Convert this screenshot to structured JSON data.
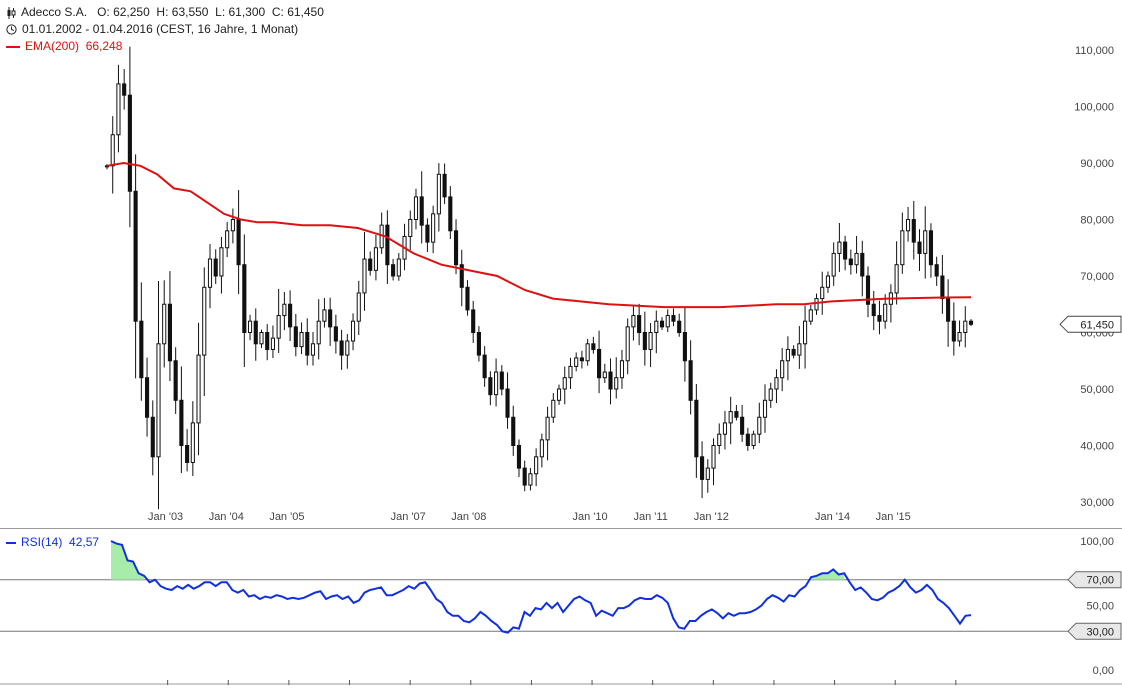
{
  "header": {
    "symbol": "Adecco S.A.",
    "ohlc": "O: 62,250  H: 63,550  L: 61,300  C: 61,450",
    "range": "01.01.2002 - 01.04.2016 (CEST, 16 Jahre, 1 Monat)",
    "ema_label": "EMA(200)",
    "ema_value": "66,248",
    "rsi_label": "RSI(14)",
    "rsi_value": "42,57"
  },
  "colors": {
    "ema": "#e01010",
    "rsi": "#1030e0",
    "candle": "#111111",
    "rsi_fill": "#a8ecaa",
    "grid": "#888888"
  },
  "chart_data": [
    {
      "type": "candlestick",
      "title": "Adecco S.A.",
      "x_tick_labels": [
        "Jan '03",
        "Jan '04",
        "Jan '05",
        "Jan '07",
        "Jan '08",
        "Jan '10",
        "Jan '11",
        "Jan '12",
        "Jan '14",
        "Jan '15"
      ],
      "y_tick_labels": [
        "110,000",
        "100,000",
        "90,000",
        "80,000",
        "70,000",
        "60,000",
        "50,000",
        "40,000",
        "30,000"
      ],
      "ylim": [
        27,
        113
      ],
      "last_price_label": "61,450",
      "ema_series_name": "EMA(200)",
      "close": [
        89.5,
        95.0,
        104.0,
        102.0,
        85.0,
        62.0,
        52.0,
        45.0,
        38.0,
        58.0,
        65.0,
        55.0,
        48.0,
        40.0,
        37.0,
        44.0,
        56.0,
        68.0,
        73.0,
        70.0,
        75.0,
        78.0,
        80.0,
        72.0,
        60.0,
        62.0,
        58.0,
        60.0,
        57.0,
        59.0,
        63.0,
        65.0,
        61.0,
        57.5,
        60.0,
        56.0,
        58.0,
        62.0,
        64.0,
        61.0,
        58.5,
        56.0,
        58.5,
        62.0,
        67.0,
        73.0,
        71.0,
        75.0,
        79.0,
        72.0,
        70.0,
        73.0,
        77.0,
        80.0,
        84.0,
        79.0,
        76.0,
        81.0,
        88.0,
        84.0,
        78.0,
        72.0,
        68.0,
        64.0,
        60.0,
        56.0,
        52.0,
        49.0,
        53.0,
        50.0,
        45.0,
        40.0,
        36.0,
        33.0,
        35.0,
        38.0,
        41.0,
        45.0,
        48.0,
        50.0,
        52.0,
        54.0,
        55.5,
        55.0,
        58.0,
        57.0,
        52.0,
        53.0,
        50.0,
        52.0,
        55.0,
        61.0,
        63.0,
        60.0,
        57.0,
        60.0,
        62.0,
        61.0,
        63.0,
        62.0,
        60.0,
        55.0,
        48.0,
        38.0,
        34.0,
        36.0,
        40.0,
        42.0,
        44.0,
        46.0,
        45.0,
        42.0,
        40.0,
        42.0,
        45.0,
        48.0,
        50.0,
        52.0,
        55.0,
        57.0,
        56.0,
        58.0,
        62.0,
        64.0,
        66.0,
        68.0,
        70.0,
        74.0,
        76.0,
        73.0,
        72.0,
        74.0,
        70.0,
        65.0,
        63.0,
        62.0,
        65.0,
        67.0,
        72.0,
        78.0,
        80.0,
        76.0,
        74.0,
        78.0,
        72.0,
        70.0,
        66.0,
        62.0,
        58.5,
        60.0,
        62.0,
        61.45
      ],
      "ema": [
        89.5,
        90.0,
        89.5,
        88.0,
        85.5,
        85.0,
        83.0,
        81.0,
        80.0,
        79.5,
        79.5,
        79.0,
        79.0,
        78.5,
        77.0,
        74.0,
        72.0,
        71.0,
        70.0,
        67.5,
        66.0,
        65.0,
        64.5,
        64.5,
        65.0,
        65.0,
        65.5,
        66.0,
        66.2,
        66.248
      ],
      "ema_x": [
        0,
        3,
        6,
        9,
        12,
        15,
        18,
        21,
        24,
        27,
        30,
        35,
        40,
        45,
        50,
        55,
        60,
        65,
        70,
        75,
        80,
        90,
        100,
        110,
        120,
        125,
        130,
        140,
        150,
        155
      ]
    },
    {
      "type": "line",
      "series_name": "RSI(14)",
      "y_tick_labels": [
        "100,00",
        "50,00",
        "0,00"
      ],
      "level_labels": [
        "70,00",
        "30,00"
      ],
      "ylim": [
        0,
        100
      ],
      "levels": [
        70,
        30
      ],
      "rsi": [
        100,
        98,
        97,
        85,
        84,
        75,
        73,
        68,
        70,
        65,
        63,
        62,
        65,
        63,
        66,
        63,
        65,
        68,
        68,
        65,
        68,
        68,
        62,
        60,
        62,
        57,
        58,
        55,
        57,
        56,
        58,
        57,
        55,
        56,
        55,
        56,
        58,
        60,
        61,
        55,
        57,
        58,
        55,
        57,
        52,
        54,
        60,
        62,
        63,
        64,
        58,
        58,
        60,
        62,
        65,
        63,
        67,
        68,
        62,
        55,
        52,
        45,
        42,
        42,
        38,
        37,
        40,
        45,
        42,
        38,
        35,
        30,
        29,
        33,
        32,
        45,
        42,
        48,
        47,
        52,
        48,
        52,
        45,
        50,
        55,
        57,
        54,
        52,
        42,
        46,
        44,
        42,
        48,
        48,
        50,
        54,
        56,
        55,
        55,
        58,
        56,
        52,
        40,
        33,
        32,
        38,
        38,
        42,
        45,
        47,
        44,
        40,
        44,
        42,
        44,
        44,
        45,
        47,
        50,
        55,
        58,
        56,
        53,
        58,
        57,
        62,
        65,
        72,
        73,
        75,
        75,
        78,
        74,
        75,
        68,
        62,
        64,
        60,
        55,
        54,
        56,
        60,
        62,
        65,
        70,
        64,
        60,
        62,
        66,
        62,
        55,
        52,
        48,
        42,
        36,
        42,
        42.57
      ]
    }
  ]
}
